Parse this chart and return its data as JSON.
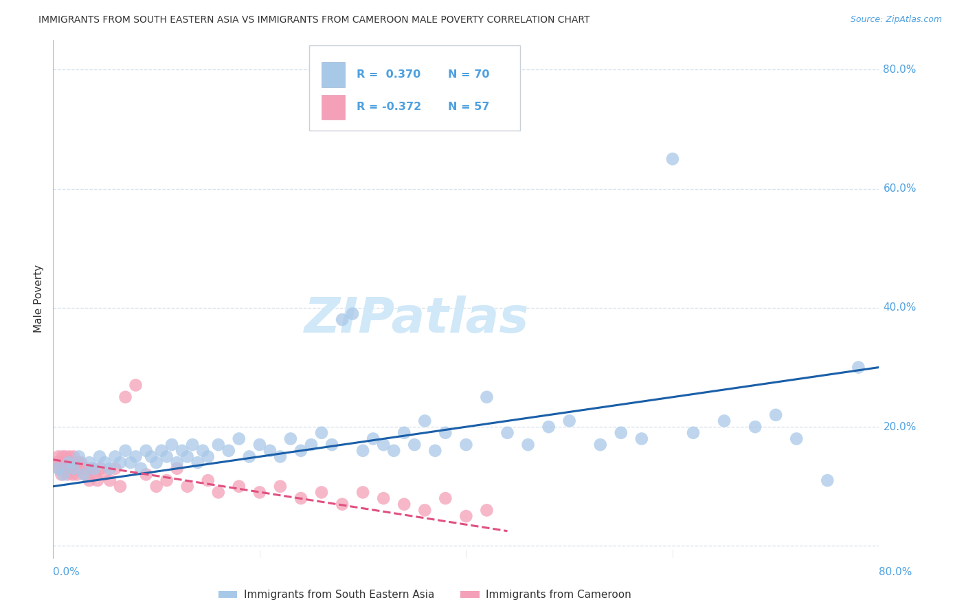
{
  "title": "IMMIGRANTS FROM SOUTH EASTERN ASIA VS IMMIGRANTS FROM CAMEROON MALE POVERTY CORRELATION CHART",
  "source": "Source: ZipAtlas.com",
  "ylabel": "Male Poverty",
  "legend_blue_r": "R =  0.370",
  "legend_blue_n": "N = 70",
  "legend_pink_r": "R = -0.372",
  "legend_pink_n": "N = 57",
  "legend_label_blue": "Immigrants from South Eastern Asia",
  "legend_label_pink": "Immigrants from Cameroon",
  "blue_color": "#a8c8e8",
  "pink_color": "#f4a0b8",
  "trendline_blue": "#1a5fa8",
  "trendline_pink": "#e05080",
  "axis_label_color": "#4da0e0",
  "title_color": "#333333",
  "watermark_color": "#d0e8f8",
  "background_color": "#ffffff",
  "grid_color": "#c8d8e8",
  "xlim": [
    0.0,
    0.8
  ],
  "ylim": [
    -0.02,
    0.85
  ],
  "ytick_positions": [
    0.0,
    0.2,
    0.4,
    0.6,
    0.8
  ],
  "ytick_labels": [
    "",
    "20.0%",
    "40.0%",
    "60.0%",
    "80.0%"
  ],
  "xtick_positions": [
    0.0,
    0.2,
    0.4,
    0.6,
    0.8
  ],
  "blue_x": [
    0.005,
    0.01,
    0.015,
    0.02,
    0.025,
    0.03,
    0.035,
    0.04,
    0.045,
    0.05,
    0.055,
    0.06,
    0.065,
    0.07,
    0.075,
    0.08,
    0.085,
    0.09,
    0.095,
    0.1,
    0.105,
    0.11,
    0.115,
    0.12,
    0.125,
    0.13,
    0.135,
    0.14,
    0.145,
    0.15,
    0.16,
    0.17,
    0.18,
    0.19,
    0.2,
    0.21,
    0.22,
    0.23,
    0.24,
    0.25,
    0.26,
    0.27,
    0.28,
    0.29,
    0.3,
    0.31,
    0.32,
    0.33,
    0.34,
    0.35,
    0.36,
    0.37,
    0.38,
    0.4,
    0.42,
    0.44,
    0.46,
    0.48,
    0.5,
    0.53,
    0.55,
    0.57,
    0.6,
    0.62,
    0.65,
    0.68,
    0.7,
    0.72,
    0.75,
    0.78
  ],
  "blue_y": [
    0.13,
    0.12,
    0.14,
    0.13,
    0.15,
    0.12,
    0.14,
    0.13,
    0.15,
    0.14,
    0.13,
    0.15,
    0.14,
    0.16,
    0.14,
    0.15,
    0.13,
    0.16,
    0.15,
    0.14,
    0.16,
    0.15,
    0.17,
    0.14,
    0.16,
    0.15,
    0.17,
    0.14,
    0.16,
    0.15,
    0.17,
    0.16,
    0.18,
    0.15,
    0.17,
    0.16,
    0.15,
    0.18,
    0.16,
    0.17,
    0.19,
    0.17,
    0.38,
    0.39,
    0.16,
    0.18,
    0.17,
    0.16,
    0.19,
    0.17,
    0.21,
    0.16,
    0.19,
    0.17,
    0.25,
    0.19,
    0.17,
    0.2,
    0.21,
    0.17,
    0.19,
    0.18,
    0.65,
    0.19,
    0.21,
    0.2,
    0.22,
    0.18,
    0.11,
    0.3
  ],
  "pink_x": [
    0.003,
    0.005,
    0.006,
    0.007,
    0.008,
    0.009,
    0.01,
    0.011,
    0.012,
    0.013,
    0.014,
    0.015,
    0.016,
    0.017,
    0.018,
    0.019,
    0.02,
    0.021,
    0.022,
    0.023,
    0.024,
    0.025,
    0.027,
    0.029,
    0.031,
    0.033,
    0.035,
    0.038,
    0.04,
    0.043,
    0.046,
    0.05,
    0.055,
    0.06,
    0.065,
    0.07,
    0.08,
    0.09,
    0.1,
    0.11,
    0.12,
    0.13,
    0.15,
    0.16,
    0.18,
    0.2,
    0.22,
    0.24,
    0.26,
    0.28,
    0.3,
    0.32,
    0.34,
    0.36,
    0.38,
    0.4,
    0.42
  ],
  "pink_y": [
    0.14,
    0.15,
    0.13,
    0.14,
    0.12,
    0.15,
    0.14,
    0.13,
    0.15,
    0.14,
    0.12,
    0.13,
    0.15,
    0.14,
    0.13,
    0.12,
    0.15,
    0.14,
    0.13,
    0.12,
    0.14,
    0.13,
    0.14,
    0.13,
    0.12,
    0.13,
    0.11,
    0.13,
    0.12,
    0.11,
    0.13,
    0.12,
    0.11,
    0.13,
    0.1,
    0.25,
    0.27,
    0.12,
    0.1,
    0.11,
    0.13,
    0.1,
    0.11,
    0.09,
    0.1,
    0.09,
    0.1,
    0.08,
    0.09,
    0.07,
    0.09,
    0.08,
    0.07,
    0.06,
    0.08,
    0.05,
    0.06
  ],
  "blue_trend_x": [
    0.0,
    0.8
  ],
  "blue_trend_y": [
    0.1,
    0.3
  ],
  "pink_trend_x": [
    0.0,
    0.44
  ],
  "pink_trend_y": [
    0.145,
    0.025
  ]
}
